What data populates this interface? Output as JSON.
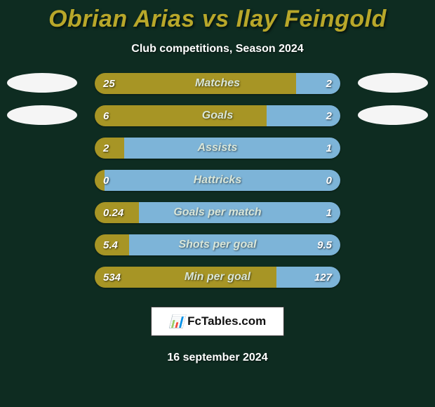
{
  "background_color": "#0e2c21",
  "title": {
    "text": "Obrian Arias vs Ilay Feingold",
    "color": "#b8a72a",
    "fontsize": 34
  },
  "subtitle": {
    "text": "Club competitions, Season 2024",
    "color": "#ffffff",
    "fontsize": 16
  },
  "players": {
    "left": {
      "color": "#a79525",
      "oval_color": "#f5f5f5"
    },
    "right": {
      "color": "#7db4d8",
      "oval_color": "#f5f5f5"
    }
  },
  "metric_label_color": "#d9e6d9",
  "value_text_color": "#ffffff",
  "bar_track_color": "#10231b",
  "rows": [
    {
      "metric": "Matches",
      "left": "25",
      "right": "2",
      "left_pct": 82,
      "has_ovals": true
    },
    {
      "metric": "Goals",
      "left": "6",
      "right": "2",
      "left_pct": 70,
      "has_ovals": true
    },
    {
      "metric": "Assists",
      "left": "2",
      "right": "1",
      "left_pct": 12,
      "has_ovals": false
    },
    {
      "metric": "Hattricks",
      "left": "0",
      "right": "0",
      "left_pct": 4,
      "has_ovals": false
    },
    {
      "metric": "Goals per match",
      "left": "0.24",
      "right": "1",
      "left_pct": 18,
      "has_ovals": false
    },
    {
      "metric": "Shots per goal",
      "left": "5.4",
      "right": "9.5",
      "left_pct": 14,
      "has_ovals": false
    },
    {
      "metric": "Min per goal",
      "left": "534",
      "right": "127",
      "left_pct": 74,
      "has_ovals": false
    }
  ],
  "brand": {
    "glyph": "📊",
    "text": "FcTables.com"
  },
  "date": "16 september 2024"
}
